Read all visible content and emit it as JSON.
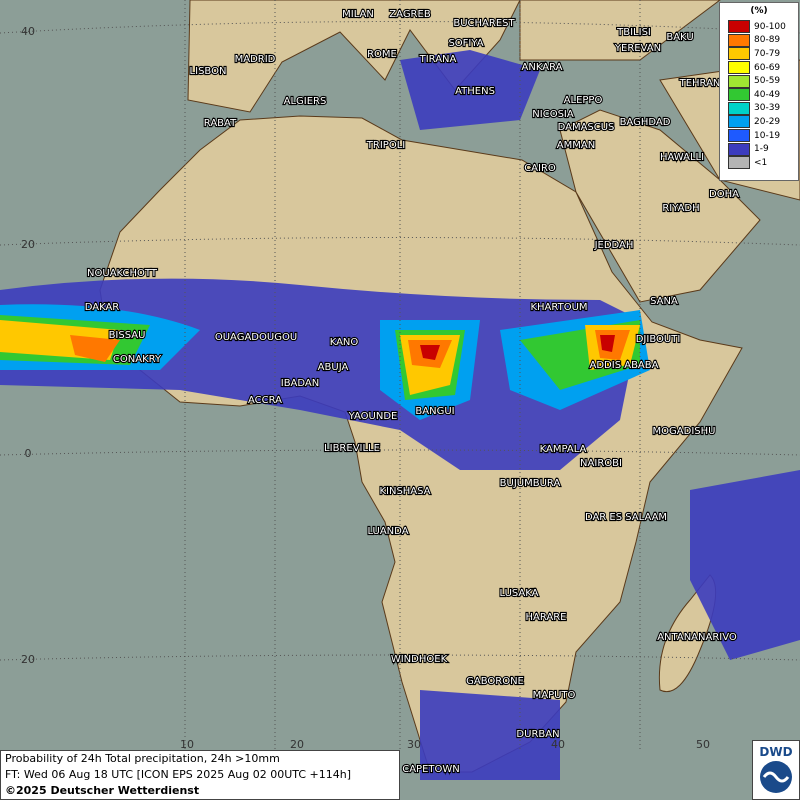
{
  "cities": [
    "MILAN",
    "ZAGREB",
    "BUCHAREST",
    "TBILISI",
    "BAKU",
    "MADRID",
    "ROME",
    "SOFIYA",
    "YEREVAN",
    "LISBON",
    "TIRANA",
    "ANKARA",
    "TEHRAN",
    "ALGIERS",
    "ATHENS",
    "ALEPPO",
    "RABAT",
    "NICOSIA",
    "BAGHDAD",
    "TRIPOLI",
    "DAMASCUS",
    "AMMAN",
    "HAWALLI",
    "CAIRO",
    "DOHA",
    "RIYADH",
    "JEDDAH",
    "NOUAKCHOTT",
    "SANA",
    "KHARTOUM",
    "DAKAR",
    "BISSAU",
    "DJIBOUTI",
    "OUAGADOUGOU",
    "KANO",
    "CONAKRY",
    "ABUJA",
    "ADDIS ABABA",
    "IBADAN",
    "ACCRA",
    "BANGUI",
    "YAOUNDE",
    "MOGADISHU",
    "LIBREVILLE",
    "KAMPALA",
    "NAIROBI",
    "KINSHASA",
    "BUJUMBURA",
    "DAR ES SALAAM",
    "LUANDA",
    "LUSAKA",
    "HARARE",
    "ANTANANARIVO",
    "WINDHOEK",
    "GABORONE",
    "MAPUTO",
    "DURBAN",
    "CAPETOWN"
  ],
  "legend": {
    "title": "(%)",
    "items": [
      {
        "label": "90-100",
        "color": "#c80000"
      },
      {
        "label": "80-89",
        "color": "#ff7800"
      },
      {
        "label": "70-79",
        "color": "#ffc800"
      },
      {
        "label": "60-69",
        "color": "#ffff00"
      },
      {
        "label": "50-59",
        "color": "#a0e632"
      },
      {
        "label": "40-49",
        "color": "#32c832"
      },
      {
        "label": "30-39",
        "color": "#00d2c8"
      },
      {
        "label": "20-29",
        "color": "#00a0f0"
      },
      {
        "label": "10-19",
        "color": "#1e5aff"
      },
      {
        "label": "1-9",
        "color": "#3c3cbe"
      },
      {
        "label": "<1",
        "color": "#b4b4b4"
      }
    ]
  },
  "latitude_labels": [
    "40",
    "20",
    "0",
    "20"
  ],
  "longitude_labels": [
    "10",
    "20",
    "30",
    "40",
    "50"
  ],
  "footer": {
    "line1": "Probability of 24h Total precipitation, 24h >10mm",
    "line2": "FT: Wed 06 Aug 18 UTC [ICON EPS 2025 Aug 02 00UTC +114h]",
    "line3": "©2025 Deutscher Wetterdienst"
  },
  "logo": "DWD"
}
